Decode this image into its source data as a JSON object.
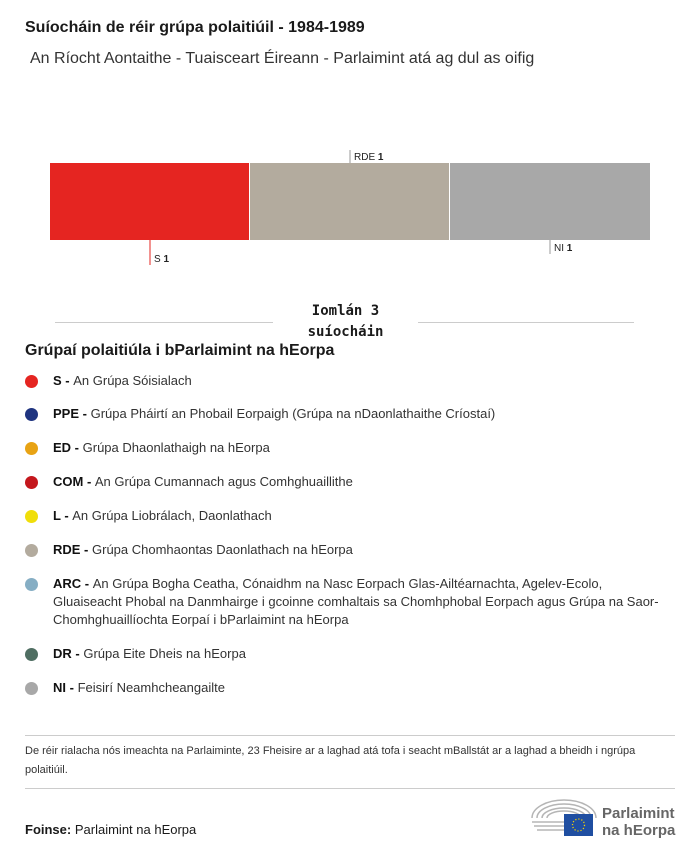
{
  "header": {
    "title": "Suíocháin de réir grúpa polaitiúil - 1984-1989",
    "subtitle": "An Ríocht Aontaithe - Tuaisceart Éireann - Parlaimint atá ag dul as oifig"
  },
  "chart_data": {
    "type": "bar",
    "stacked": true,
    "orientation": "horizontal",
    "categories": [
      "S",
      "RDE",
      "NI"
    ],
    "values": [
      1,
      1,
      1
    ],
    "colors": [
      "#e52521",
      "#b3ab9e",
      "#a8a8a8"
    ],
    "total_label": "Iomlán 3 suíocháin"
  },
  "legend": {
    "title": "Grúpaí polaitiúla i bParlaimint na hEorpa",
    "items": [
      {
        "code": "S",
        "name": "An Grúpa Sóisialach",
        "color": "#e52521"
      },
      {
        "code": "PPE",
        "name": "Grúpa Pháirtí an Phobail Eorpaigh (Grúpa na nDaonlathaithe Críostaí)",
        "color": "#1f3480"
      },
      {
        "code": "ED",
        "name": "Grúpa Dhaonlathaigh na hEorpa",
        "color": "#e8a314"
      },
      {
        "code": "COM",
        "name": "An Grúpa Cumannach agus Comhghuaillithe",
        "color": "#c4171d"
      },
      {
        "code": "L",
        "name": "An Grúpa Liobrálach, Daonlathach",
        "color": "#f0de0a"
      },
      {
        "code": "RDE",
        "name": "Grúpa Chomhaontas Daonlathach na hEorpa",
        "color": "#b3ab9e"
      },
      {
        "code": "ARC",
        "name": "An Grúpa Bogha Ceatha, Cónaidhm na Nasc Eorpach Glas-Ailtéarnachta, Agelev-Ecolo, Gluaiseacht Phobal na Danmhairge i gcoinne comhaltais sa Chomhphobal Eorpach agus Grúpa na Saor-Chomhghuaillíochta Eorpaí i bParlaimint na hEorpa",
        "color": "#86aec4"
      },
      {
        "code": "DR",
        "name": "Grúpa Eite Dheis na hEorpa",
        "color": "#4f6e62"
      },
      {
        "code": "NI",
        "name": "Feisirí Neamhcheangailte",
        "color": "#a8a8a8"
      }
    ]
  },
  "footer": {
    "note": "De réir rialacha nós imeachta na Parlaiminte, 23 Fheisire ar a laghad atá tofa i seacht mBallstát ar a laghad a bheidh i ngrúpa polaitiúil.",
    "source_label": "Foinse:",
    "source": "Parlaimint na hEorpa",
    "logo_text": "Parlaimint na hEorpa"
  }
}
